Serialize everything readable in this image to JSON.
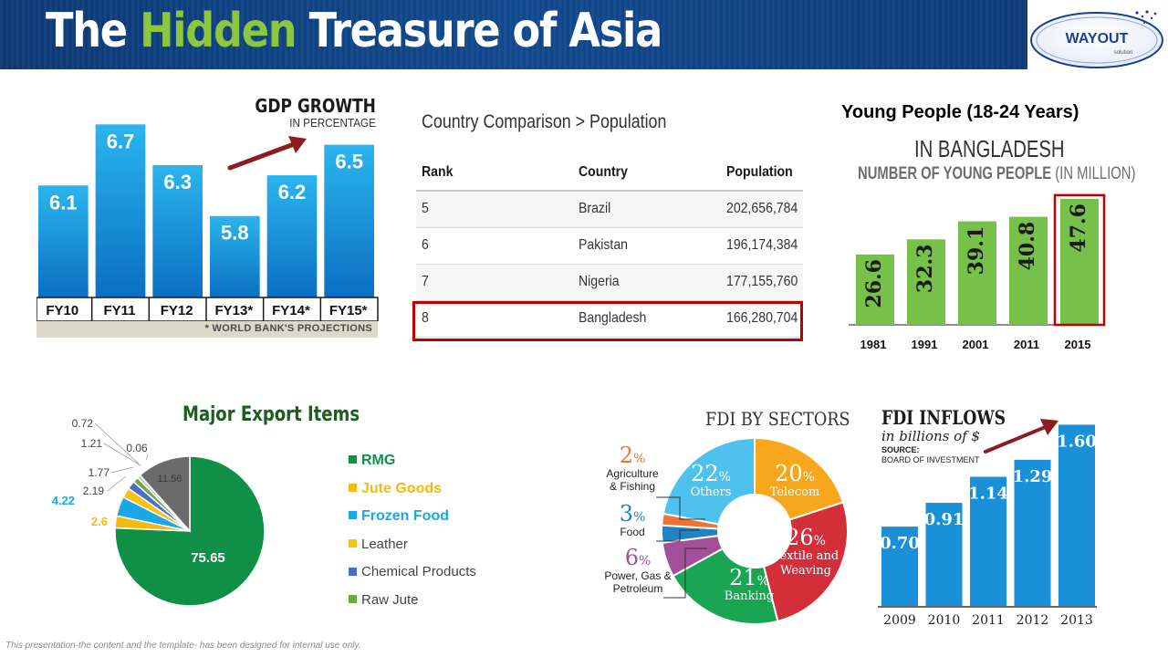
{
  "header": {
    "title_part1": "The",
    "title_part2": "Hidden",
    "title_part3": "Treasure of Asia",
    "logo_text": "WAYOUT",
    "logo_subtext": "solution"
  },
  "footer": "This presentation-the content and the template- has been designed for internal use only.",
  "colors": {
    "banner": "#124a8f",
    "gdp_bar": "#1596dc",
    "young_bar": "#77c04a",
    "highlight": "#c00000",
    "fdi_bar": "#1a90d8"
  },
  "chart_data": [
    {
      "id": "gdp",
      "type": "bar",
      "title": "GDP GROWTH",
      "subtitle": "IN PERCENTAGE",
      "categories": [
        "FY10",
        "FY11",
        "FY12",
        "FY13*",
        "FY14*",
        "FY15*"
      ],
      "values": [
        6.1,
        6.7,
        6.3,
        5.8,
        6.2,
        6.5
      ],
      "value_labels": [
        "6.1",
        "6.7",
        "6.3",
        "5.8",
        "6.2",
        "6.5"
      ],
      "ylim": [
        5.0,
        6.9
      ],
      "note": "* WORLD BANK'S PROJECTIONS"
    },
    {
      "id": "population",
      "type": "table",
      "title": "Country Comparison > Population",
      "columns": [
        "Rank",
        "Country",
        "Population"
      ],
      "rows": [
        [
          "5",
          "Brazil",
          "202,656,784"
        ],
        [
          "6",
          "Pakistan",
          "196,174,384"
        ],
        [
          "7",
          "Nigeria",
          "177,155,760"
        ],
        [
          "8",
          "Bangladesh",
          "166,280,704"
        ]
      ],
      "highlighted_row": 3
    },
    {
      "id": "young_people",
      "type": "bar",
      "title": "Young People (18-24 Years)",
      "subtitle": "IN BANGLADESH",
      "ylabel_bold": "NUMBER OF YOUNG PEOPLE",
      "ylabel_unit": "(IN MILLION)",
      "categories": [
        "1981",
        "1991",
        "2001",
        "2011",
        "2015"
      ],
      "values": [
        26.6,
        32.3,
        39.1,
        40.8,
        47.6
      ],
      "value_labels": [
        "26.6",
        "32.3",
        "39.1",
        "40.8",
        "47.6"
      ],
      "ylim": [
        0,
        51
      ],
      "highlighted_index": 4
    },
    {
      "id": "exports",
      "type": "pie",
      "title": "Major Export Items",
      "slices": [
        {
          "name": "RMG",
          "value": 75.65,
          "label": "75.65",
          "color": "#0f9046"
        },
        {
          "name": "Jute Goods",
          "value": 2.6,
          "label": "2.6",
          "color": "#f2b90f"
        },
        {
          "name": "Frozen Food",
          "value": 4.22,
          "label": "4.22",
          "color": "#1aa7e6"
        },
        {
          "name": "Leather",
          "value": 2.19,
          "label": "2.19",
          "color": "#f7c211"
        },
        {
          "name": "Chemical Products",
          "value": 1.77,
          "label": "1.77",
          "color": "#4a6fc2"
        },
        {
          "name": "Raw Jute",
          "value": 1.21,
          "label": "1.21",
          "color": "#6aaa3f"
        },
        {
          "name": "",
          "value": 0.72,
          "label": "0.72",
          "color": "#b9c7d8"
        },
        {
          "name": "",
          "value": 0.06,
          "label": "0.06",
          "color": "#9a9a9a"
        },
        {
          "name": "",
          "value": 11.56,
          "label": "11.56",
          "color": "#6b6b6b"
        }
      ],
      "legend": [
        {
          "name": "RMG",
          "color": "#0f9046",
          "bold": true
        },
        {
          "name": "Jute Goods",
          "color": "#f2b90f",
          "bold": true
        },
        {
          "name": "Frozen Food",
          "color": "#1aa7e6",
          "bold": true
        },
        {
          "name": "Leather",
          "color": "#f7c211",
          "bold": false
        },
        {
          "name": "Chemical Products",
          "color": "#4a6fc2",
          "bold": false
        },
        {
          "name": "Raw Jute",
          "color": "#6aaa3f",
          "bold": false
        }
      ]
    },
    {
      "id": "fdi_sectors",
      "type": "pie",
      "title": "FDI BY SECTORS",
      "slices": [
        {
          "name": "Telecom",
          "value": 20,
          "label": "20",
          "color": "#f6a71c"
        },
        {
          "name": "Textile and Weaving",
          "value": 26,
          "label": "26",
          "color": "#d32f3a"
        },
        {
          "name": "Banking",
          "value": 21,
          "label": "21",
          "color": "#19a551"
        },
        {
          "name": "Power, Gas & Petroleum",
          "value": 6,
          "label": "6",
          "color": "#a3509b"
        },
        {
          "name": "Food",
          "value": 3,
          "label": "3",
          "color": "#2183c4"
        },
        {
          "name": "Agriculture & Fishing",
          "value": 2,
          "label": "2",
          "color": "#ef7433"
        },
        {
          "name": "Others",
          "value": 22,
          "label": "22",
          "color": "#4ec2ee"
        }
      ],
      "outside_labels": [
        {
          "value": "2",
          "name1": "Agriculture",
          "name2": "& Fishing",
          "color": "#ef7433"
        },
        {
          "value": "3",
          "name1": "Food",
          "name2": "",
          "color": "#2183c4"
        },
        {
          "value": "6",
          "name1": "Power, Gas &",
          "name2": "Petroleum",
          "color": "#a3509b"
        }
      ],
      "percent_symbol": "%",
      "inside_labels": [
        {
          "value": "20",
          "name": "Telecom"
        },
        {
          "value": "26",
          "name1": "Textile and",
          "name2": "Weaving"
        },
        {
          "value": "21",
          "name": "Banking"
        },
        {
          "value": "22",
          "name": "Others"
        }
      ]
    },
    {
      "id": "fdi_inflows",
      "type": "bar",
      "title": "FDI INFLOWS",
      "unit": "in billions of $",
      "source_label": "SOURCE:",
      "source": "BOARD OF INVESTMENT",
      "categories": [
        "2009",
        "2010",
        "2011",
        "2012",
        "2013"
      ],
      "values": [
        0.7,
        0.91,
        1.14,
        1.29,
        1.6
      ],
      "value_labels": [
        "0.70",
        "0.91",
        "1.14",
        "1.29",
        "1.60"
      ],
      "ylim": [
        0,
        1.7
      ]
    }
  ]
}
